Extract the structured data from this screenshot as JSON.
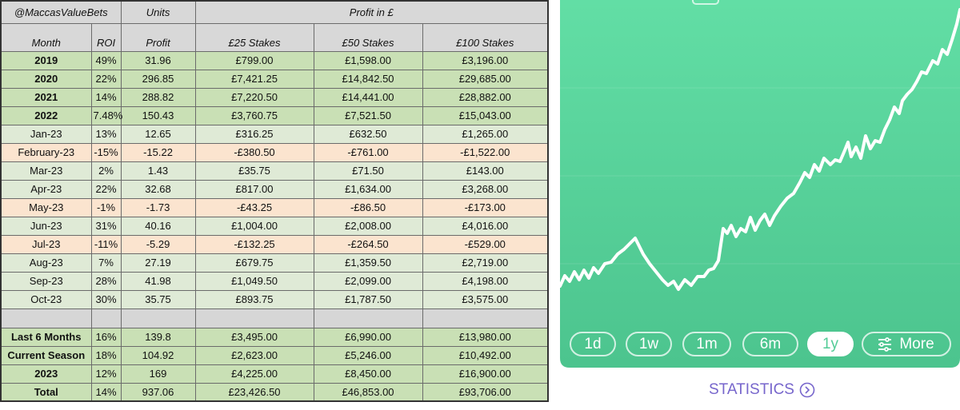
{
  "table": {
    "header": [
      "@MaccasValueBets",
      "Units",
      "Profit in £"
    ],
    "columns": [
      "Month",
      "ROI",
      "Profit",
      "£25 Stakes",
      "£50 Stakes",
      "£100 Stakes"
    ],
    "yearly": [
      [
        "2019",
        "49%",
        "31.96",
        "£799.00",
        "£1,598.00",
        "£3,196.00"
      ],
      [
        "2020",
        "22%",
        "296.85",
        "£7,421.25",
        "£14,842.50",
        "£29,685.00"
      ],
      [
        "2021",
        "14%",
        "288.82",
        "£7,220.50",
        "£14,441.00",
        "£28,882.00"
      ],
      [
        "2022",
        "7.48%",
        "150.43",
        "£3,760.75",
        "£7,521.50",
        "£15,043.00"
      ]
    ],
    "monthly": [
      [
        "Jan-23",
        "13%",
        "12.65",
        "£316.25",
        "£632.50",
        "£1,265.00"
      ],
      [
        "February-23",
        "-15%",
        "-15.22",
        "-£380.50",
        "-£761.00",
        "-£1,522.00"
      ],
      [
        "Mar-23",
        "2%",
        "1.43",
        "£35.75",
        "£71.50",
        "£143.00"
      ],
      [
        "Apr-23",
        "22%",
        "32.68",
        "£817.00",
        "£1,634.00",
        "£3,268.00"
      ],
      [
        "May-23",
        "-1%",
        "-1.73",
        "-£43.25",
        "-£86.50",
        "-£173.00"
      ],
      [
        "Jun-23",
        "31%",
        "40.16",
        "£1,004.00",
        "£2,008.00",
        "£4,016.00"
      ],
      [
        "Jul-23",
        "-11%",
        "-5.29",
        "-£132.25",
        "-£264.50",
        "-£529.00"
      ],
      [
        "Aug-23",
        "7%",
        "27.19",
        "£679.75",
        "£1,359.50",
        "£2,719.00"
      ],
      [
        "Sep-23",
        "28%",
        "41.98",
        "£1,049.50",
        "£2,099.00",
        "£4,198.00"
      ],
      [
        "Oct-23",
        "30%",
        "35.75",
        "£893.75",
        "£1,787.50",
        "£3,575.00"
      ]
    ],
    "summary": [
      [
        "Last 6 Months",
        "16%",
        "139.8",
        "£3,495.00",
        "£6,990.00",
        "£13,980.00"
      ],
      [
        "Current Season",
        "18%",
        "104.92",
        "£2,623.00",
        "£5,246.00",
        "£10,492.00"
      ],
      [
        "2023",
        "12%",
        "169",
        "£4,225.00",
        "£8,450.00",
        "£16,900.00"
      ],
      [
        "Total",
        "14%",
        "937.06",
        "£23,426.50",
        "£46,853.00",
        "£93,706.00"
      ]
    ]
  },
  "app": {
    "ranges": [
      "1d",
      "1w",
      "1m",
      "6m",
      "1y",
      "More"
    ],
    "link": "STATISTICS"
  }
}
